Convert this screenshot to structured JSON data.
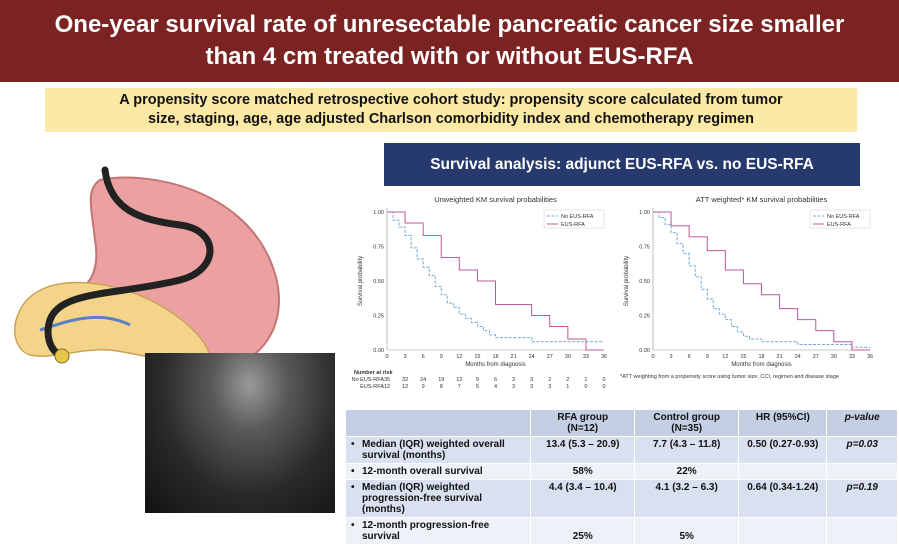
{
  "title": {
    "line1": "One-year survival rate of unresectable pancreatic cancer size smaller",
    "line2": "than 4 cm treated with or without EUS-RFA"
  },
  "subtitle": {
    "line1": "A propensity score matched retrospective cohort study: propensity score calculated from tumor",
    "line2": "size, staging, age, age adjusted Charlson comorbidity index and chemotherapy regimen"
  },
  "panel_header": "Survival analysis: adjunct EUS-RFA vs. no EUS-RFA",
  "colors": {
    "title_bg": "#7b2322",
    "subtitle_bg": "#fbe9a6",
    "panel_bg": "#263a6e",
    "no_rfa": "#74a9d8",
    "rfa": "#c0579b"
  },
  "chart_data": [
    {
      "type": "line",
      "title": "Unweighted KM survival probabilities",
      "xlabel": "Months from diagnosis",
      "ylabel": "Survival probability",
      "xlim": [
        0,
        36
      ],
      "ylim": [
        0,
        1
      ],
      "xticks": [
        0,
        3,
        6,
        9,
        12,
        15,
        18,
        21,
        24,
        27,
        30,
        33,
        36
      ],
      "yticks": [
        "0.00",
        "0.25",
        "0.50",
        "0.75",
        "1.00"
      ],
      "legend_position": "top-right",
      "series": [
        {
          "name": "No EUS-RFA",
          "x": [
            0,
            1,
            2,
            3,
            4,
            5,
            6,
            7,
            8,
            9,
            10,
            11,
            12,
            13,
            14,
            15,
            16,
            17,
            18,
            21,
            24,
            27,
            30,
            33,
            36
          ],
          "y": [
            1.0,
            0.94,
            0.89,
            0.83,
            0.74,
            0.66,
            0.6,
            0.54,
            0.46,
            0.4,
            0.34,
            0.31,
            0.26,
            0.23,
            0.2,
            0.17,
            0.14,
            0.11,
            0.09,
            0.09,
            0.06,
            0.06,
            0.06,
            0.06,
            0.06
          ]
        },
        {
          "name": "EUS-RFA",
          "x": [
            0,
            3,
            6,
            9,
            12,
            15,
            18,
            24,
            27,
            30,
            33,
            36
          ],
          "y": [
            1.0,
            0.92,
            0.83,
            0.67,
            0.58,
            0.5,
            0.33,
            0.25,
            0.17,
            0.08,
            0.0,
            0.0
          ]
        }
      ],
      "risk_table": {
        "title": "Number at risk",
        "rows": [
          {
            "label": "No EUS-RFA",
            "values": [
              "35",
              "32",
              "24",
              "19",
              "12",
              "9",
              "6",
              "3",
              "3",
              "2",
              "2",
              "1",
              "0"
            ]
          },
          {
            "label": "EUS-RFA",
            "values": [
              "12",
              "12",
              "9",
              "8",
              "7",
              "5",
              "4",
              "3",
              "3",
              "3",
              "1",
              "0",
              "0"
            ]
          }
        ]
      }
    },
    {
      "type": "line",
      "title": "ATT weighted* KM survival probabilities",
      "xlabel": "Months from diagnosis",
      "ylabel": "Survival probability",
      "xlim": [
        0,
        36
      ],
      "ylim": [
        0,
        1
      ],
      "xticks": [
        0,
        3,
        6,
        9,
        12,
        15,
        18,
        21,
        24,
        27,
        30,
        33,
        36
      ],
      "yticks": [
        "0.00",
        "0.25",
        "0.50",
        "0.75",
        "1.00"
      ],
      "legend_position": "top-right",
      "footnote": "*ATT weighting from a propensity score using tumor size, CCI, regimen and disease stage",
      "series": [
        {
          "name": "No EUS-RFA",
          "x": [
            0,
            1,
            2,
            3,
            4,
            5,
            6,
            7,
            8,
            9,
            10,
            11,
            12,
            13,
            14,
            15,
            16,
            18,
            21,
            24,
            27,
            30,
            33,
            36
          ],
          "y": [
            1.0,
            0.96,
            0.91,
            0.85,
            0.77,
            0.7,
            0.61,
            0.53,
            0.44,
            0.37,
            0.3,
            0.26,
            0.22,
            0.17,
            0.13,
            0.1,
            0.08,
            0.06,
            0.06,
            0.04,
            0.04,
            0.04,
            0.02,
            0.02
          ]
        },
        {
          "name": "EUS-RFA",
          "x": [
            0,
            3,
            6,
            9,
            12,
            15,
            18,
            21,
            24,
            27,
            30,
            33,
            36
          ],
          "y": [
            1.0,
            0.9,
            0.82,
            0.72,
            0.58,
            0.48,
            0.4,
            0.3,
            0.22,
            0.14,
            0.06,
            0.0,
            0.0
          ]
        }
      ]
    }
  ],
  "table": {
    "headers": [
      "",
      "RFA group\n(N=12)",
      "Control group\n(N=35)",
      "HR (95%CI)",
      "p-value"
    ],
    "rows": [
      {
        "label": "Median (IQR) weighted overall survival (months)",
        "rfa": "13.4 (5.3 – 20.9)",
        "control": "7.7 (4.3 – 11.8)",
        "hr": "0.50 (0.27-0.93)",
        "p": "p=0.03"
      },
      {
        "label": "12-month overall survival",
        "rfa": "58%",
        "control": "22%",
        "hr": "",
        "p": ""
      },
      {
        "label": "Median (IQR) weighted progression-free survival (months)",
        "rfa": "4.4 (3.4 – 10.4)",
        "control": "4.1 (3.2 – 6.3)",
        "hr": "0.64 (0.34-1.24)",
        "p": "p=0.19"
      },
      {
        "label": "12-month progression-free survival",
        "rfa": "25%",
        "control": "5%",
        "hr": "",
        "p": ""
      }
    ]
  }
}
